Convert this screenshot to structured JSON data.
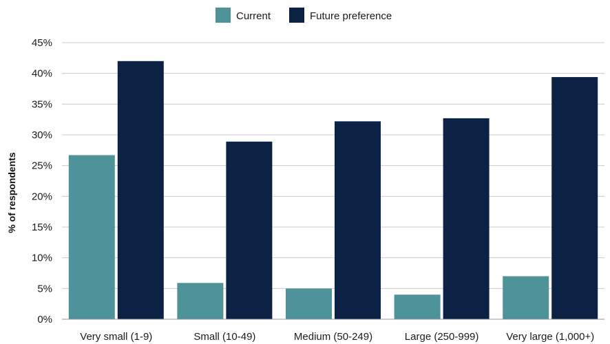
{
  "chart_data": {
    "type": "bar",
    "title": "",
    "xlabel": "",
    "ylabel": "% of respondents",
    "categories": [
      "Very small (1-9)",
      "Small (10-49)",
      "Medium (50-249)",
      "Large (250-999)",
      "Very large (1,000+)"
    ],
    "series": [
      {
        "name": "Current",
        "color": "#4e9399",
        "values": [
          26.7,
          5.9,
          5.0,
          4.0,
          7.0
        ]
      },
      {
        "name": "Future preference",
        "color": "#0c2244",
        "values": [
          42.0,
          28.9,
          32.2,
          32.7,
          39.4
        ]
      }
    ],
    "ylim": [
      0,
      45
    ],
    "yticks": [
      0,
      5,
      10,
      15,
      20,
      25,
      30,
      35,
      40,
      45
    ],
    "ytick_labels": [
      "0%",
      "5%",
      "10%",
      "15%",
      "20%",
      "25%",
      "30%",
      "35%",
      "40%",
      "45%"
    ],
    "grid": true,
    "legend_position": "top-center"
  }
}
